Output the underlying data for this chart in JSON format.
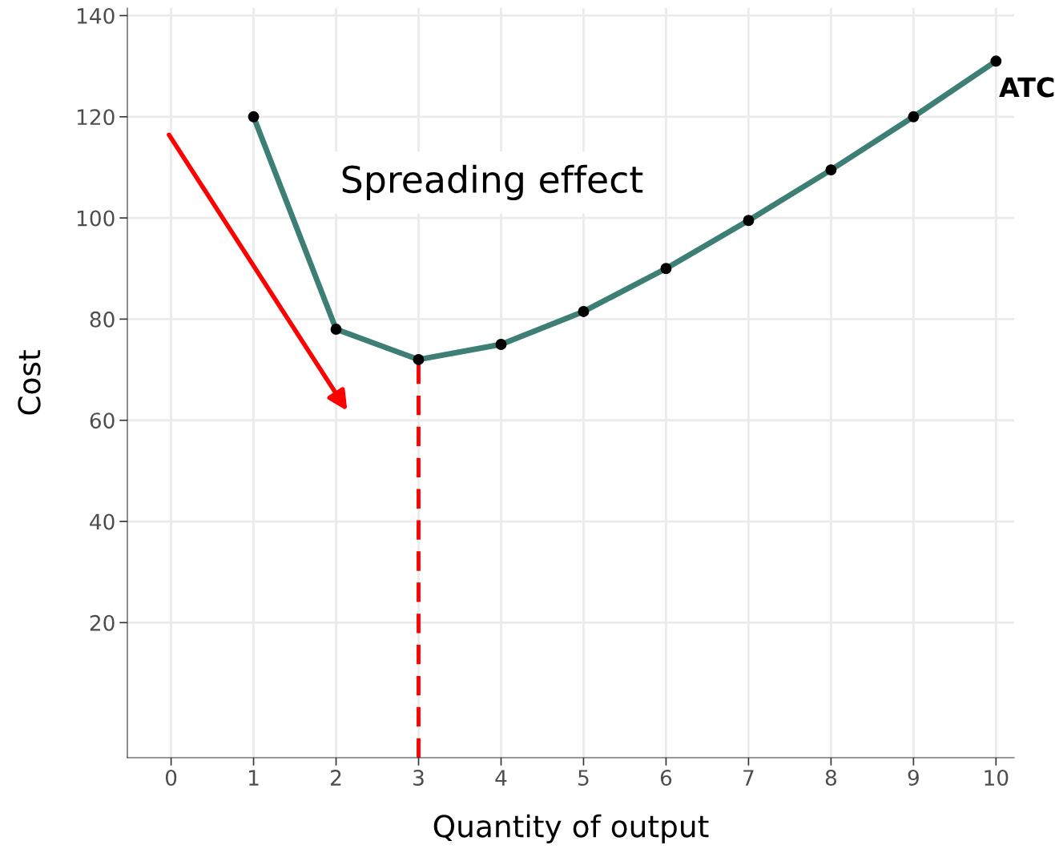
{
  "chart_data": {
    "type": "line",
    "xlabel": "Quantity of output",
    "ylabel": "Cost",
    "x": [
      1,
      2,
      3,
      4,
      5,
      6,
      7,
      8,
      9,
      10
    ],
    "series": [
      {
        "name": "ATC",
        "color": "#3d7f74",
        "values": [
          120,
          78,
          72,
          75,
          81.5,
          90,
          99.5,
          109.5,
          120,
          131
        ]
      }
    ],
    "marker": "circle",
    "line_style": "solid",
    "xlim": [
      -0.53,
      10.22
    ],
    "xticks": [
      0,
      1,
      2,
      3,
      4,
      5,
      6,
      7,
      8,
      9,
      10
    ],
    "ylim": [
      -6.7,
      141.5
    ],
    "yticks": [
      20,
      40,
      60,
      80,
      100,
      120,
      140
    ],
    "grid": true,
    "legend": false,
    "ref_lines": [
      {
        "axis": "x",
        "value": 3,
        "color": "#ff0000",
        "line_style": "dashed"
      }
    ],
    "annotations": [
      "Spreading effect"
    ]
  }
}
